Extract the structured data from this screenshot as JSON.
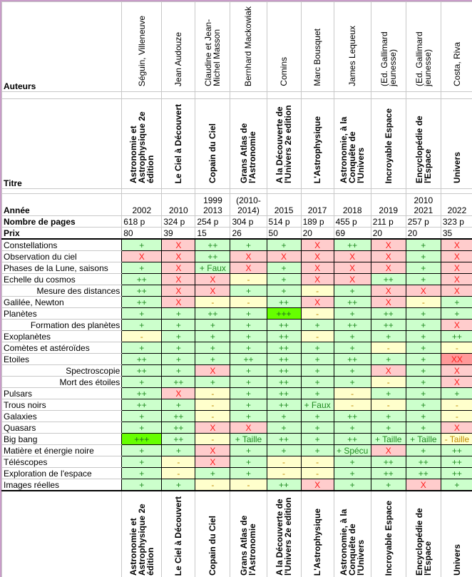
{
  "labels": {
    "authors": "Auteurs",
    "title": "Titre",
    "year": "Année",
    "pages": "Nombre de pages",
    "price": "Prix"
  },
  "books": [
    {
      "author": "Séguin, Villeneuve",
      "title": "Astronomie et Astrophysique 2e édition",
      "title_bottom": "Astronomie et Astrophysique 2e édition",
      "year": "2002",
      "pages": "618 p",
      "price": "80"
    },
    {
      "author": "Jean Audouze",
      "title": "Le Ciel à Découvert",
      "title_bottom": "Le Ciel à Découvert",
      "year": "2010",
      "pages": "324 p",
      "price": "39"
    },
    {
      "author": "Claudine et Jean-Michel Masson",
      "title": "Copain du Ciel",
      "title_bottom": "Copain du Ciel",
      "year": "1999 2013",
      "pages": "254 p",
      "price": "15"
    },
    {
      "author": "Bernhard Mackowiak",
      "title": "Grans Atlas de l'Astronomie",
      "title_bottom": "Grans Atlas de l'Astronomie",
      "year": "(2010-2014)",
      "pages": "304 p",
      "price": "26"
    },
    {
      "author": "Comins",
      "title": "A la Découverte de l'Univers 2e edition",
      "title_bottom": "A la Découverte de l'Univers 2e edition",
      "year": "2015",
      "pages": "514 p",
      "price": "50"
    },
    {
      "author": "Marc Bousquet",
      "title": "L'Astrophysique",
      "title_bottom": "L'Astrophysique",
      "year": "2017",
      "pages": "189 p",
      "price": "20"
    },
    {
      "author": "James Lequeux",
      "title": "Astronomie, à la Conquête de l'Univers",
      "title_bottom": "Astronomie, à la Conquête de l'Univers",
      "year": "2018",
      "pages": "455 p",
      "price": "69"
    },
    {
      "author": "(Ed. Gallimard jeunesse)",
      "title": "Incroyable Espace",
      "title_bottom": "Incroyable Espace",
      "year": "2019",
      "pages": "211 p",
      "price": "20"
    },
    {
      "author": "(Ed. Gallimard jeunesse)",
      "title": "Encyclopédie de l'Espace",
      "title_bottom": "Encyclopédie de l'Espace",
      "year": "2010 2021",
      "pages": "257 p",
      "price": "20"
    },
    {
      "author": "Costa, Riva",
      "title": "Univers",
      "title_bottom": "Univers",
      "year": "2022",
      "pages": "323 p",
      "price": "35"
    }
  ],
  "topics": [
    {
      "name": "Constellations",
      "sub": false,
      "values": [
        "+",
        "X",
        "++",
        "+",
        "+",
        "X",
        "++",
        "X",
        "+",
        "X"
      ]
    },
    {
      "name": "Observation du ciel",
      "sub": false,
      "values": [
        "X",
        "X",
        "++",
        "X",
        "X",
        "X",
        "X",
        "X",
        "+",
        "X"
      ]
    },
    {
      "name": "Phases de la Lune, saisons",
      "sub": false,
      "values": [
        "+",
        "X",
        "+ Faux",
        "X",
        "+",
        "X",
        "X",
        "X",
        "+",
        "X"
      ]
    },
    {
      "name": "Echelle du cosmos",
      "sub": false,
      "values": [
        "++",
        "X",
        "X",
        "-",
        "+",
        "X",
        "X",
        "++",
        "+",
        "X"
      ]
    },
    {
      "name": "Mesure des distances",
      "sub": true,
      "values": [
        "++",
        "X",
        "X",
        "+",
        "+",
        "-",
        "+",
        "X",
        "X",
        "X"
      ]
    },
    {
      "name": "Galilée, Newton",
      "sub": false,
      "values": [
        "++",
        "X",
        "-",
        "-",
        "++",
        "X",
        "++",
        "X",
        "-",
        "+"
      ]
    },
    {
      "name": "Planètes",
      "sub": false,
      "values": [
        "+",
        "+",
        "++",
        "+",
        "+++",
        "-",
        "+",
        "++",
        "+",
        "+"
      ]
    },
    {
      "name": "Formation des planètes",
      "sub": true,
      "values": [
        "+",
        "+",
        "+",
        "+",
        "++",
        "+",
        "++",
        "++",
        "+",
        "X"
      ]
    },
    {
      "name": "Exoplanètes",
      "sub": false,
      "values": [
        "-",
        "+",
        "+",
        "+",
        "++",
        "-",
        "+",
        "+",
        "+",
        "++"
      ]
    },
    {
      "name": "Comètes et astéroïdes",
      "sub": false,
      "values": [
        "+",
        "+",
        "+",
        "+",
        "++",
        "+",
        "+",
        "-",
        "+",
        "-"
      ]
    },
    {
      "name": "Etoiles",
      "sub": false,
      "values": [
        "++",
        "+",
        "+",
        "++",
        "++",
        "+",
        "++",
        "+",
        "+",
        "XX"
      ]
    },
    {
      "name": "Spectroscopie",
      "sub": true,
      "values": [
        "++",
        "+",
        "X",
        "+",
        "++",
        "+",
        "+",
        "X",
        "+",
        "X"
      ]
    },
    {
      "name": "Mort des étoiles",
      "sub": true,
      "values": [
        "+",
        "++",
        "+",
        "+",
        "++",
        "+",
        "+",
        "-",
        "+",
        "X"
      ]
    },
    {
      "name": "Pulsars",
      "sub": false,
      "values": [
        "++",
        "X",
        "-",
        "+",
        "++",
        "+",
        "-",
        "+",
        "+",
        "+"
      ]
    },
    {
      "name": "Trous noirs",
      "sub": false,
      "values": [
        "++",
        "+",
        "-",
        "+",
        "++",
        "+ Faux",
        "-",
        "-",
        "+",
        "-"
      ]
    },
    {
      "name": "Galaxies",
      "sub": false,
      "values": [
        "+",
        "++",
        "-",
        "+",
        "+",
        "+",
        "++",
        "+",
        "+",
        "-"
      ]
    },
    {
      "name": "Quasars",
      "sub": false,
      "values": [
        "+",
        "++",
        "X",
        "X",
        "+",
        "+",
        "+",
        "+",
        "+",
        "X"
      ]
    },
    {
      "name": "Big bang",
      "sub": false,
      "values": [
        "+++",
        "++",
        "-",
        "+ Taille",
        "++",
        "+",
        "++",
        "+ Taille",
        "+ Taille",
        "- Taille"
      ]
    },
    {
      "name": "Matière et énergie noire",
      "sub": false,
      "values": [
        "+",
        "+",
        "X",
        "+",
        "+",
        "+",
        "+ Spécu",
        "X",
        "+",
        "++"
      ]
    },
    {
      "name": "Téléscopes",
      "sub": false,
      "values": [
        "+",
        "-",
        "X",
        "+",
        "-",
        "-",
        "+",
        "++",
        "++",
        "++"
      ]
    },
    {
      "name": "Exploration de l'espace",
      "sub": false,
      "values": [
        "+",
        "-",
        "+",
        "+",
        "-",
        "-",
        "+",
        "++",
        "++",
        "++"
      ]
    },
    {
      "name": "Images réelles",
      "sub": false,
      "values": [
        "+",
        "+",
        "-",
        "-",
        "++",
        "X",
        "+",
        "+",
        "X",
        "+"
      ]
    }
  ],
  "colors": {
    "good": "#ccffcc",
    "bad": "#ffcccc",
    "neutral": "#ffffcc",
    "excellent": "#66ff00",
    "very_bad": "#ff9999"
  }
}
